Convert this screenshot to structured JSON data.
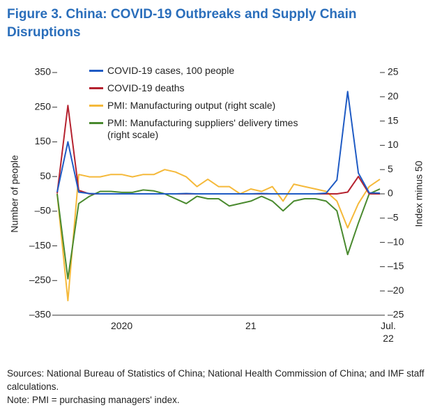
{
  "chart_data": {
    "type": "line",
    "title": "Figure 3.  China: COVID-19 Outbreaks and Supply Chain Disruptions",
    "ylabel": "Number of people",
    "y2label": "Index minus 50",
    "source": "Sources: National Bureau of Statistics of China; National Health Commission of China; and IMF staff calculations.",
    "note": "Note: PMI = purchasing managers' index.",
    "categories": [
      null,
      null,
      null,
      null,
      null,
      null,
      "2020",
      null,
      null,
      null,
      null,
      null,
      null,
      null,
      null,
      null,
      null,
      null,
      "21",
      null,
      null,
      null,
      null,
      null,
      null,
      null,
      null,
      null,
      null,
      null,
      "Jul. 22"
    ],
    "ylim": [
      -350,
      350
    ],
    "yticks": [
      {
        "value": -350,
        "label": "–350"
      },
      {
        "value": -250,
        "label": "–250"
      },
      {
        "value": -150,
        "label": "–150"
      },
      {
        "value": -50,
        "label": "–50"
      },
      50,
      150,
      250,
      350
    ],
    "y2lim": [
      -25,
      25
    ],
    "y2ticks": [
      {
        "value": -25,
        "label": "–25"
      },
      {
        "value": -20,
        "label": "–20"
      },
      {
        "value": -15,
        "label": "–15"
      },
      {
        "value": -10,
        "label": "–10"
      },
      {
        "value": -5,
        "label": "–5"
      },
      0,
      5,
      10,
      15,
      20,
      25
    ],
    "series": [
      {
        "name": "COVID-19 cases, 100 people",
        "color": "#1f5bc4",
        "values": [
          5,
          150,
          5,
          1,
          0,
          0,
          0,
          0,
          0,
          0,
          0,
          0,
          1,
          0,
          0,
          0,
          0,
          0,
          0,
          1,
          0,
          0,
          0,
          0,
          0,
          2,
          40,
          295,
          60,
          3,
          2
        ]
      },
      {
        "name": "COVID-19 deaths",
        "color": "#b5222f",
        "values": [
          1,
          255,
          10,
          0,
          0,
          0,
          0,
          0,
          0,
          0,
          0,
          0,
          0,
          0,
          0,
          0,
          0,
          0,
          0,
          0,
          0,
          0,
          0,
          0,
          0,
          0,
          0,
          5,
          50,
          0,
          0
        ]
      },
      {
        "name": "PMI: Manufacturing output (right scale)",
        "color": "#f5b93a",
        "axis": "y2",
        "values": [
          0,
          -22,
          4,
          3.5,
          3.5,
          4,
          4,
          3.5,
          4,
          4,
          5,
          4.5,
          3.5,
          1.5,
          3,
          1.5,
          1.5,
          0,
          1,
          0.5,
          1.5,
          -1.5,
          2,
          1.5,
          1,
          0.5,
          -1.5,
          -7,
          -2,
          1.5,
          3
        ]
      },
      {
        "name": "PMI: Manufacturing suppliers' delivery times (right scale)",
        "color": "#4a8a2f",
        "axis": "y2",
        "values": [
          0,
          -17.5,
          -2,
          -0.5,
          0.5,
          0.5,
          0.3,
          0.3,
          0.8,
          0.6,
          0,
          -1,
          -2,
          -0.5,
          -1,
          -1,
          -2.5,
          -2,
          -1.5,
          -0.5,
          -1.5,
          -3.5,
          -1.5,
          -1,
          -1,
          -1.5,
          -3.5,
          -12.5,
          -6,
          0,
          1
        ]
      }
    ]
  }
}
